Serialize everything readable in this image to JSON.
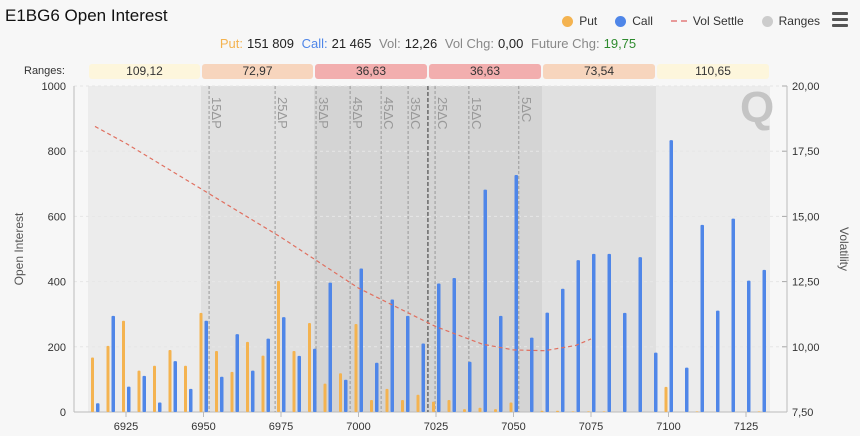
{
  "header": {
    "title": "E1BG6 Open Interest",
    "menu_icon": "hamburger-icon"
  },
  "legend": [
    {
      "label": "Put",
      "color": "#f4b350"
    },
    {
      "label": "Call",
      "color": "#4f86e8"
    },
    {
      "label": "Vol Settle",
      "color": "#e07060"
    },
    {
      "label": "Ranges",
      "color": "#cccccc"
    }
  ],
  "stats": {
    "put_label": "Put:",
    "put_value": "151 809",
    "call_label": "Call:",
    "call_value": "21 465",
    "vol_label": "Vol:",
    "vol_value": "12,26",
    "volchg_label": "Vol Chg:",
    "volchg_value": "0,00",
    "futchg_label": "Future Chg:",
    "futchg_value": "19,75"
  },
  "ranges": {
    "label": "Ranges:",
    "values": [
      "109,12",
      "72,97",
      "36,63",
      "36,63",
      "73,54",
      "110,65"
    ],
    "colors": [
      "#fdf6dc",
      "#f7d5bd",
      "#f2aeae",
      "#f2aeae",
      "#f7d5bd",
      "#fdf6dc"
    ]
  },
  "chart_data": {
    "type": "bar",
    "title": "E1BG6 Open Interest",
    "xlabel": "",
    "ylabel": "Open Interest",
    "y2label": "Volatility",
    "ylim": [
      0,
      1000
    ],
    "y2lim": [
      7.5,
      20
    ],
    "yticks": [
      "0",
      "200",
      "400",
      "600",
      "800",
      "1000"
    ],
    "y2ticks": [
      "7,50",
      "10,00",
      "12,50",
      "15,00",
      "17,50",
      "20,00"
    ],
    "xticks": [
      6925,
      6950,
      6975,
      7000,
      7025,
      7050,
      7075,
      7100,
      7125
    ],
    "strikes": [
      6915,
      6920,
      6925,
      6930,
      6935,
      6940,
      6945,
      6950,
      6955,
      6960,
      6965,
      6970,
      6975,
      6980,
      6985,
      6990,
      6995,
      7000,
      7005,
      7010,
      7015,
      7020,
      7025,
      7030,
      7035,
      7040,
      7045,
      7050,
      7055,
      7060,
      7065,
      7070,
      7075,
      7080,
      7085,
      7090,
      7095,
      7100,
      7105,
      7110,
      7115,
      7120,
      7125,
      7130
    ],
    "series": [
      {
        "name": "Put",
        "values": [
          167,
          203,
          280,
          127,
          142,
          190,
          142,
          304,
          187,
          123,
          215,
          173,
          402,
          187,
          273,
          87,
          119,
          270,
          37,
          71,
          37,
          53,
          32,
          37,
          9,
          13,
          9,
          29,
          0,
          4,
          4,
          2,
          2,
          2,
          0,
          0,
          0,
          77,
          0,
          2,
          0,
          0,
          0,
          2
        ]
      },
      {
        "name": "Call",
        "values": [
          27,
          295,
          78,
          111,
          29,
          156,
          71,
          280,
          108,
          239,
          127,
          225,
          291,
          172,
          194,
          397,
          99,
          440,
          151,
          345,
          295,
          210,
          394,
          411,
          154,
          682,
          295,
          727,
          228,
          305,
          378,
          466,
          485,
          485,
          304,
          475,
          182,
          834,
          136,
          574,
          311,
          593,
          403,
          436
        ]
      }
    ],
    "vol_settle": {
      "name": "Vol Settle",
      "x": [
        6915,
        6925,
        6950,
        6975,
        7000,
        7025,
        7040,
        7050,
        7060,
        7070,
        7075
      ],
      "y": [
        18.45,
        17.8,
        16.0,
        14.2,
        12.25,
        10.77,
        10.1,
        9.88,
        9.85,
        10.05,
        10.3
      ]
    },
    "delta_lines": [
      {
        "label": "15ΔP",
        "strike": 6951.8
      },
      {
        "label": "25ΔP",
        "strike": 6973.1
      },
      {
        "label": "35ΔP",
        "strike": 6986.3
      },
      {
        "label": "45ΔP",
        "strike": 6997.3
      },
      {
        "label": "45ΔC",
        "strike": 7007.3
      },
      {
        "label": "35ΔC",
        "strike": 7016
      },
      {
        "label": "25ΔC",
        "strike": 7024.7
      },
      {
        "label": "15ΔC",
        "strike": 7035.6
      },
      {
        "label": "5ΔC",
        "strike": 7051.7
      }
    ],
    "future_line": 7022.4,
    "grid": true,
    "legend_position": "top-right"
  }
}
